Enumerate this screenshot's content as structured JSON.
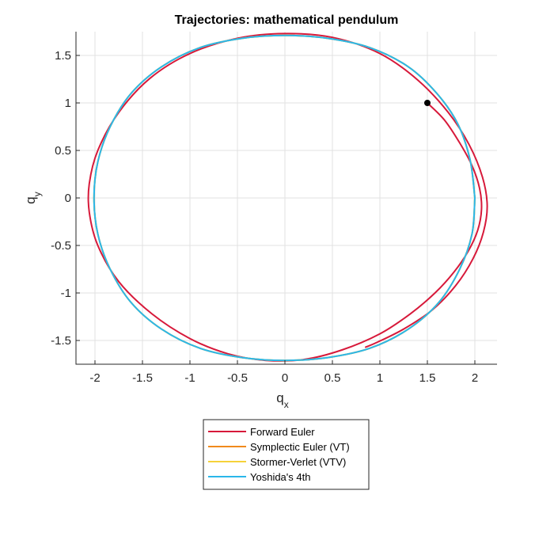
{
  "chart_data": {
    "type": "line",
    "title": "Trajectories: mathematical pendulum",
    "xlabel": {
      "main": "q",
      "sub": "x"
    },
    "ylabel": {
      "main": "q",
      "sub": "y"
    },
    "xlim": [
      -2.2,
      2.2
    ],
    "ylim": [
      -1.75,
      1.75
    ],
    "xticks": [
      -2,
      -1.5,
      -1,
      -0.5,
      0,
      0.5,
      1,
      1.5,
      2
    ],
    "xtick_labels": [
      "-2",
      "-1.5",
      "-1",
      "-0.5",
      "0",
      "0.5",
      "1",
      "1.5",
      "2"
    ],
    "yticks": [
      -1.5,
      -1,
      -0.5,
      0,
      0.5,
      1,
      1.5
    ],
    "ytick_labels": [
      "-1.5",
      "-1",
      "-0.5",
      "0",
      "0.5",
      "1",
      "1.5"
    ],
    "grid": true,
    "legend_position": "bottom-outside",
    "start_point": {
      "x": 1.5,
      "y": 1.0,
      "color": "#000000"
    },
    "series": [
      {
        "name": "Forward Euler",
        "color": "#d7193a",
        "points": [
          [
            1.5,
            1.0
          ],
          [
            1.68,
            0.82
          ],
          [
            1.84,
            0.58
          ],
          [
            1.97,
            0.34
          ],
          [
            2.05,
            0.1
          ],
          [
            2.07,
            -0.12
          ],
          [
            2.03,
            -0.34
          ],
          [
            1.93,
            -0.56
          ],
          [
            1.78,
            -0.78
          ],
          [
            1.58,
            -1.0
          ],
          [
            1.32,
            -1.22
          ],
          [
            1.0,
            -1.43
          ],
          [
            0.6,
            -1.6
          ],
          [
            0.2,
            -1.7
          ],
          [
            -0.2,
            -1.71
          ],
          [
            -0.6,
            -1.64
          ],
          [
            -1.0,
            -1.48
          ],
          [
            -1.4,
            -1.22
          ],
          [
            -1.75,
            -0.88
          ],
          [
            -1.97,
            -0.5
          ],
          [
            -2.06,
            -0.15
          ],
          [
            -2.06,
            0.15
          ],
          [
            -1.97,
            0.5
          ],
          [
            -1.75,
            0.9
          ],
          [
            -1.42,
            1.26
          ],
          [
            -1.0,
            1.52
          ],
          [
            -0.5,
            1.68
          ],
          [
            0.0,
            1.73
          ],
          [
            0.5,
            1.69
          ],
          [
            1.0,
            1.52
          ],
          [
            1.4,
            1.24
          ],
          [
            1.72,
            0.9
          ],
          [
            1.94,
            0.56
          ],
          [
            2.08,
            0.22
          ],
          [
            2.13,
            -0.08
          ],
          [
            2.09,
            -0.36
          ],
          [
            1.98,
            -0.64
          ],
          [
            1.8,
            -0.92
          ],
          [
            1.55,
            -1.18
          ],
          [
            1.25,
            -1.38
          ],
          [
            0.97,
            -1.52
          ],
          [
            0.85,
            -1.57
          ]
        ]
      },
      {
        "name": "Symplectic Euler (VT)",
        "color": "#f08a1c",
        "points": [
          [
            2.0,
            0.0
          ],
          [
            1.95,
            0.4
          ],
          [
            1.82,
            0.78
          ],
          [
            1.6,
            1.1
          ],
          [
            1.3,
            1.38
          ],
          [
            0.9,
            1.58
          ],
          [
            0.45,
            1.68
          ],
          [
            0.0,
            1.71
          ],
          [
            -0.45,
            1.68
          ],
          [
            -0.9,
            1.58
          ],
          [
            -1.3,
            1.38
          ],
          [
            -1.62,
            1.1
          ],
          [
            -1.84,
            0.75
          ],
          [
            -1.97,
            0.38
          ],
          [
            -2.01,
            0.0
          ],
          [
            -1.97,
            -0.38
          ],
          [
            -1.84,
            -0.75
          ],
          [
            -1.62,
            -1.1
          ],
          [
            -1.3,
            -1.38
          ],
          [
            -0.9,
            -1.58
          ],
          [
            -0.45,
            -1.68
          ],
          [
            0.0,
            -1.71
          ],
          [
            0.45,
            -1.68
          ],
          [
            0.9,
            -1.58
          ],
          [
            1.3,
            -1.38
          ],
          [
            1.62,
            -1.1
          ],
          [
            1.84,
            -0.75
          ],
          [
            1.97,
            -0.38
          ],
          [
            2.0,
            0.0
          ]
        ]
      },
      {
        "name": "Stormer-Verlet (VTV)",
        "color": "#f6d23a",
        "points": [
          [
            2.0,
            0.0
          ],
          [
            1.95,
            0.4
          ],
          [
            1.82,
            0.78
          ],
          [
            1.6,
            1.1
          ],
          [
            1.3,
            1.38
          ],
          [
            0.9,
            1.58
          ],
          [
            0.45,
            1.68
          ],
          [
            0.0,
            1.71
          ],
          [
            -0.45,
            1.68
          ],
          [
            -0.9,
            1.58
          ],
          [
            -1.3,
            1.38
          ],
          [
            -1.62,
            1.1
          ],
          [
            -1.84,
            0.75
          ],
          [
            -1.97,
            0.38
          ],
          [
            -2.01,
            0.0
          ],
          [
            -1.97,
            -0.38
          ],
          [
            -1.84,
            -0.75
          ],
          [
            -1.62,
            -1.1
          ],
          [
            -1.3,
            -1.38
          ],
          [
            -0.9,
            -1.58
          ],
          [
            -0.45,
            -1.68
          ],
          [
            0.0,
            -1.71
          ],
          [
            0.45,
            -1.68
          ],
          [
            0.9,
            -1.58
          ],
          [
            1.3,
            -1.38
          ],
          [
            1.62,
            -1.1
          ],
          [
            1.84,
            -0.75
          ],
          [
            1.97,
            -0.38
          ],
          [
            2.0,
            0.0
          ]
        ]
      },
      {
        "name": "Yoshida's 4th",
        "color": "#2ab7ea",
        "points": [
          [
            2.0,
            0.0
          ],
          [
            1.95,
            0.4
          ],
          [
            1.82,
            0.78
          ],
          [
            1.6,
            1.1
          ],
          [
            1.3,
            1.38
          ],
          [
            0.9,
            1.58
          ],
          [
            0.45,
            1.68
          ],
          [
            0.0,
            1.71
          ],
          [
            -0.45,
            1.68
          ],
          [
            -0.9,
            1.58
          ],
          [
            -1.3,
            1.38
          ],
          [
            -1.62,
            1.1
          ],
          [
            -1.84,
            0.75
          ],
          [
            -1.97,
            0.38
          ],
          [
            -2.01,
            0.0
          ],
          [
            -1.97,
            -0.38
          ],
          [
            -1.84,
            -0.75
          ],
          [
            -1.62,
            -1.1
          ],
          [
            -1.3,
            -1.38
          ],
          [
            -0.9,
            -1.58
          ],
          [
            -0.45,
            -1.68
          ],
          [
            0.0,
            -1.71
          ],
          [
            0.45,
            -1.68
          ],
          [
            0.9,
            -1.58
          ],
          [
            1.3,
            -1.38
          ],
          [
            1.62,
            -1.1
          ],
          [
            1.84,
            -0.75
          ],
          [
            1.97,
            -0.38
          ],
          [
            2.0,
            0.0
          ]
        ]
      }
    ]
  }
}
